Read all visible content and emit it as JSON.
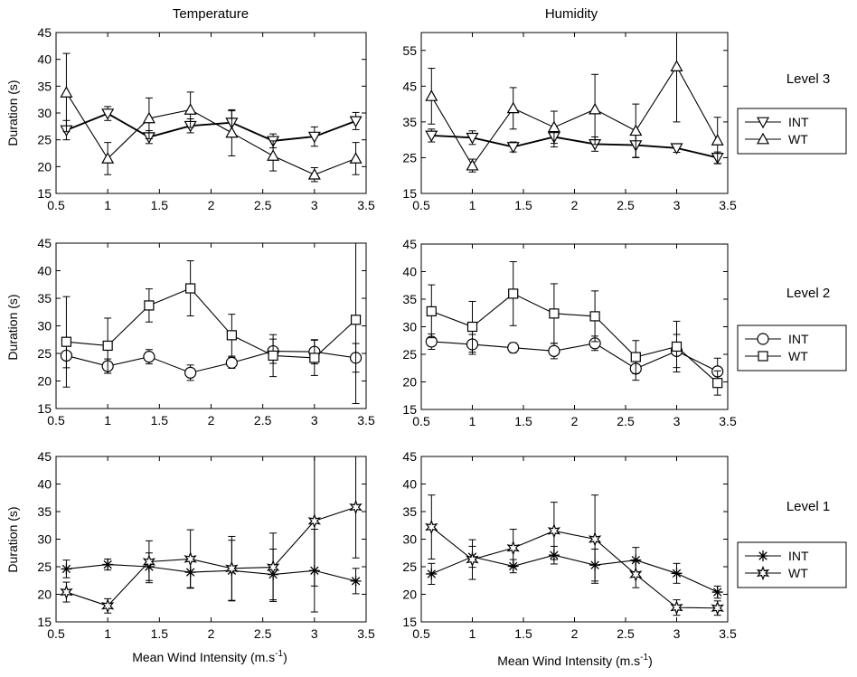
{
  "figure": {
    "col_titles": [
      "Temperature",
      "Humidity"
    ],
    "level_labels": [
      "Level 3",
      "Level 2",
      "Level 1"
    ],
    "ylabel": "Duration (s)",
    "xlabel_main": "Mean Wind Intensity (m.s",
    "xlabel_sup": "-1",
    "xlabel_close": ")"
  },
  "chart_data": [
    {
      "type": "line",
      "column": "Temperature",
      "level": "Level 3",
      "x": [
        0.6,
        1.0,
        1.4,
        1.8,
        2.2,
        2.6,
        3.0,
        3.4
      ],
      "xlim": [
        0.5,
        3.5
      ],
      "ylim": [
        15,
        45
      ],
      "xticks": [
        0.5,
        1,
        1.5,
        2,
        2.5,
        3,
        3.5
      ],
      "yticks": [
        15,
        20,
        25,
        30,
        35,
        40,
        45
      ],
      "ylabel": "Duration (s)",
      "xlabel": "",
      "series": [
        {
          "name": "INT",
          "marker": "triangle-down",
          "values": [
            26.8,
            29.9,
            25.5,
            27.6,
            28.2,
            24.8,
            25.6,
            28.5
          ],
          "err": [
            1.8,
            1.3,
            1.2,
            1.3,
            2.2,
            1.3,
            1.8,
            1.6
          ]
        },
        {
          "name": "WT",
          "marker": "triangle-up",
          "values": [
            33.8,
            21.5,
            29.0,
            30.6,
            26.3,
            22.0,
            18.5,
            21.5
          ],
          "err": [
            7.3,
            3.0,
            3.8,
            3.3,
            4.3,
            2.8,
            1.3,
            3.0
          ]
        }
      ]
    },
    {
      "type": "line",
      "column": "Humidity",
      "level": "Level 3",
      "x": [
        0.6,
        1.0,
        1.4,
        1.8,
        2.2,
        2.6,
        3.0,
        3.4
      ],
      "xlim": [
        0.5,
        3.5
      ],
      "ylim": [
        15,
        60
      ],
      "xticks": [
        0.5,
        1,
        1.5,
        2,
        2.5,
        3,
        3.5
      ],
      "yticks": [
        15,
        25,
        35,
        45,
        55
      ],
      "ylabel": "",
      "xlabel": "",
      "series": [
        {
          "name": "INT",
          "marker": "triangle-down",
          "values": [
            31.2,
            30.6,
            28.0,
            30.8,
            28.8,
            28.5,
            27.7,
            25.0
          ],
          "err": [
            1.8,
            1.9,
            1.4,
            2.8,
            2.0,
            3.4,
            1.2,
            1.6
          ]
        },
        {
          "name": "WT",
          "marker": "triangle-up",
          "values": [
            42.2,
            22.8,
            38.8,
            33.5,
            38.5,
            32.5,
            50.5,
            29.8
          ],
          "err": [
            7.8,
            1.8,
            5.8,
            4.5,
            9.8,
            7.5,
            15.5,
            6.5
          ]
        }
      ]
    },
    {
      "type": "line",
      "column": "Temperature",
      "level": "Level 2",
      "x": [
        0.6,
        1.0,
        1.4,
        1.8,
        2.2,
        2.6,
        3.0,
        3.4
      ],
      "xlim": [
        0.5,
        3.5
      ],
      "ylim": [
        15,
        45
      ],
      "xticks": [
        0.5,
        1,
        1.5,
        2,
        2.5,
        3,
        3.5
      ],
      "yticks": [
        15,
        20,
        25,
        30,
        35,
        40,
        45
      ],
      "ylabel": "Duration (s)",
      "xlabel": "",
      "series": [
        {
          "name": "INT",
          "marker": "circle",
          "values": [
            24.6,
            22.7,
            24.4,
            21.5,
            23.3,
            25.4,
            25.3,
            24.2
          ],
          "err": [
            2.2,
            1.3,
            1.3,
            1.4,
            1.0,
            2.2,
            2.2,
            2.6
          ]
        },
        {
          "name": "WT",
          "marker": "square",
          "values": [
            27.1,
            26.4,
            33.7,
            36.8,
            28.3,
            24.6,
            24.2,
            31.1
          ],
          "err": [
            8.2,
            5.0,
            3.0,
            5.0,
            3.8,
            3.8,
            3.2,
            15.2
          ]
        }
      ]
    },
    {
      "type": "line",
      "column": "Humidity",
      "level": "Level 2",
      "x": [
        0.6,
        1.0,
        1.4,
        1.8,
        2.2,
        2.6,
        3.0,
        3.4
      ],
      "xlim": [
        0.5,
        3.5
      ],
      "ylim": [
        15,
        45
      ],
      "xticks": [
        0.5,
        1,
        1.5,
        2,
        2.5,
        3,
        3.5
      ],
      "yticks": [
        15,
        20,
        25,
        30,
        35,
        40,
        45
      ],
      "ylabel": "",
      "xlabel": "",
      "series": [
        {
          "name": "INT",
          "marker": "circle",
          "values": [
            27.3,
            26.8,
            26.2,
            25.6,
            27.0,
            22.4,
            25.6,
            21.9
          ],
          "err": [
            1.4,
            1.8,
            0.9,
            1.4,
            1.3,
            2.1,
            3.0,
            2.4
          ]
        },
        {
          "name": "WT",
          "marker": "square",
          "values": [
            32.8,
            30.0,
            36.0,
            32.4,
            31.9,
            24.5,
            26.4,
            19.8
          ],
          "err": [
            4.8,
            4.6,
            5.8,
            5.4,
            4.6,
            3.0,
            4.6,
            2.2
          ]
        }
      ]
    },
    {
      "type": "line",
      "column": "Temperature",
      "level": "Level 1",
      "x": [
        0.6,
        1.0,
        1.4,
        1.8,
        2.2,
        2.6,
        3.0,
        3.4
      ],
      "xlim": [
        0.5,
        3.5
      ],
      "ylim": [
        15,
        45
      ],
      "xticks": [
        0.5,
        1,
        1.5,
        2,
        2.5,
        3,
        3.5
      ],
      "yticks": [
        15,
        20,
        25,
        30,
        35,
        40,
        45
      ],
      "ylabel": "Duration (s)",
      "xlabel": "Mean Wind Intensity (m.s-1)",
      "series": [
        {
          "name": "INT",
          "marker": "asterisk",
          "values": [
            24.6,
            25.4,
            25.0,
            24.0,
            24.3,
            23.6,
            24.3,
            22.4
          ],
          "err": [
            1.6,
            1.0,
            2.5,
            2.8,
            5.5,
            4.6,
            7.5,
            2.3
          ]
        },
        {
          "name": "WT",
          "marker": "star",
          "values": [
            20.4,
            17.9,
            25.9,
            26.4,
            24.7,
            24.9,
            33.3,
            35.8
          ],
          "err": [
            1.8,
            1.3,
            3.8,
            5.3,
            5.8,
            6.2,
            11.8,
            9.2
          ]
        }
      ]
    },
    {
      "type": "line",
      "column": "Humidity",
      "level": "Level 1",
      "x": [
        0.6,
        1.0,
        1.4,
        1.8,
        2.2,
        2.6,
        3.0,
        3.4
      ],
      "xlim": [
        0.5,
        3.5
      ],
      "ylim": [
        15,
        45
      ],
      "xticks": [
        0.5,
        1,
        1.5,
        2,
        2.5,
        3,
        3.5
      ],
      "yticks": [
        15,
        20,
        25,
        30,
        35,
        40,
        45
      ],
      "ylabel": "",
      "xlabel": "Mean Wind Intensity (m.s-1)",
      "series": [
        {
          "name": "INT",
          "marker": "asterisk",
          "values": [
            23.7,
            26.8,
            25.1,
            27.1,
            25.3,
            26.2,
            23.8,
            20.4
          ],
          "err": [
            1.9,
            1.9,
            1.2,
            1.6,
            2.9,
            2.3,
            1.8,
            1.1
          ]
        },
        {
          "name": "WT",
          "marker": "star",
          "values": [
            32.2,
            26.3,
            28.4,
            31.5,
            30.0,
            23.6,
            17.6,
            17.5
          ],
          "err": [
            5.8,
            3.6,
            3.4,
            5.2,
            8.0,
            2.4,
            1.4,
            1.3
          ]
        }
      ]
    }
  ],
  "legends": [
    {
      "level": "Level 3",
      "entries": [
        {
          "label": "INT",
          "marker": "triangle-down"
        },
        {
          "label": "WT",
          "marker": "triangle-up"
        }
      ]
    },
    {
      "level": "Level 2",
      "entries": [
        {
          "label": "INT",
          "marker": "circle"
        },
        {
          "label": "WT",
          "marker": "square"
        }
      ]
    },
    {
      "level": "Level 1",
      "entries": [
        {
          "label": "INT",
          "marker": "asterisk"
        },
        {
          "label": "WT",
          "marker": "star"
        }
      ]
    }
  ]
}
